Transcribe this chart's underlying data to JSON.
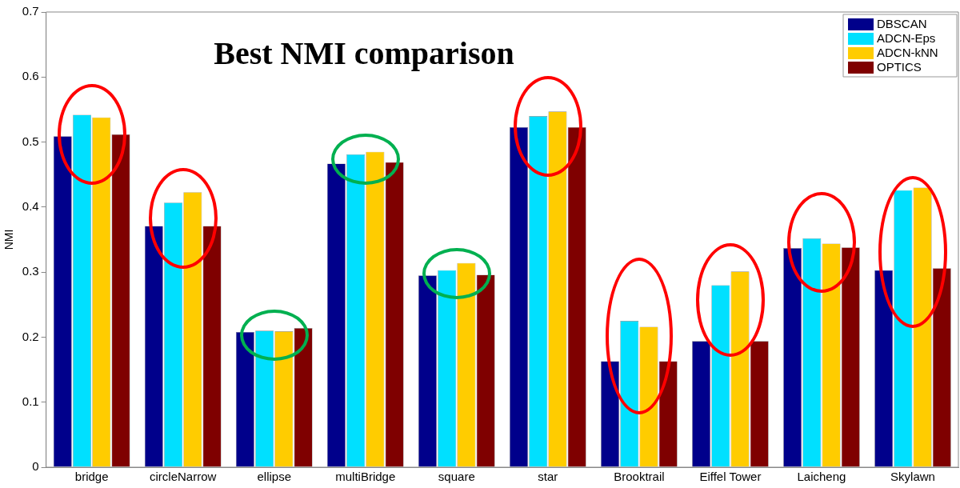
{
  "chart_data": {
    "type": "bar",
    "title": "Best NMI comparison",
    "ylabel": "NMI",
    "categories": [
      "bridge",
      "circleNarrow",
      "ellipse",
      "multiBridge",
      "square",
      "star",
      "Brooktrail",
      "Eiffel Tower",
      "Laicheng",
      "Skylawn"
    ],
    "series": [
      {
        "name": "DBSCAN",
        "color": "#00008b",
        "values": [
          0.509,
          0.371,
          0.208,
          0.467,
          0.295,
          0.523,
          0.163,
          0.194,
          0.337,
          0.303
        ]
      },
      {
        "name": "ADCN-Eps",
        "color": "#00e0ff",
        "values": [
          0.542,
          0.407,
          0.21,
          0.481,
          0.303,
          0.54,
          0.225,
          0.28,
          0.352,
          0.426
        ]
      },
      {
        "name": "ADCN-kNN",
        "color": "#ffcc00",
        "values": [
          0.538,
          0.423,
          0.209,
          0.485,
          0.314,
          0.547,
          0.216,
          0.301,
          0.344,
          0.43
        ]
      },
      {
        "name": "OPTICS",
        "color": "#7f0000",
        "values": [
          0.512,
          0.371,
          0.214,
          0.469,
          0.296,
          0.523,
          0.163,
          0.194,
          0.338,
          0.306
        ]
      }
    ],
    "ylim": [
      0,
      0.7
    ],
    "yticks": [
      0,
      0.1,
      0.2,
      0.3,
      0.4,
      0.5,
      0.6,
      0.7
    ],
    "grid": false,
    "legend": "top right"
  }
}
